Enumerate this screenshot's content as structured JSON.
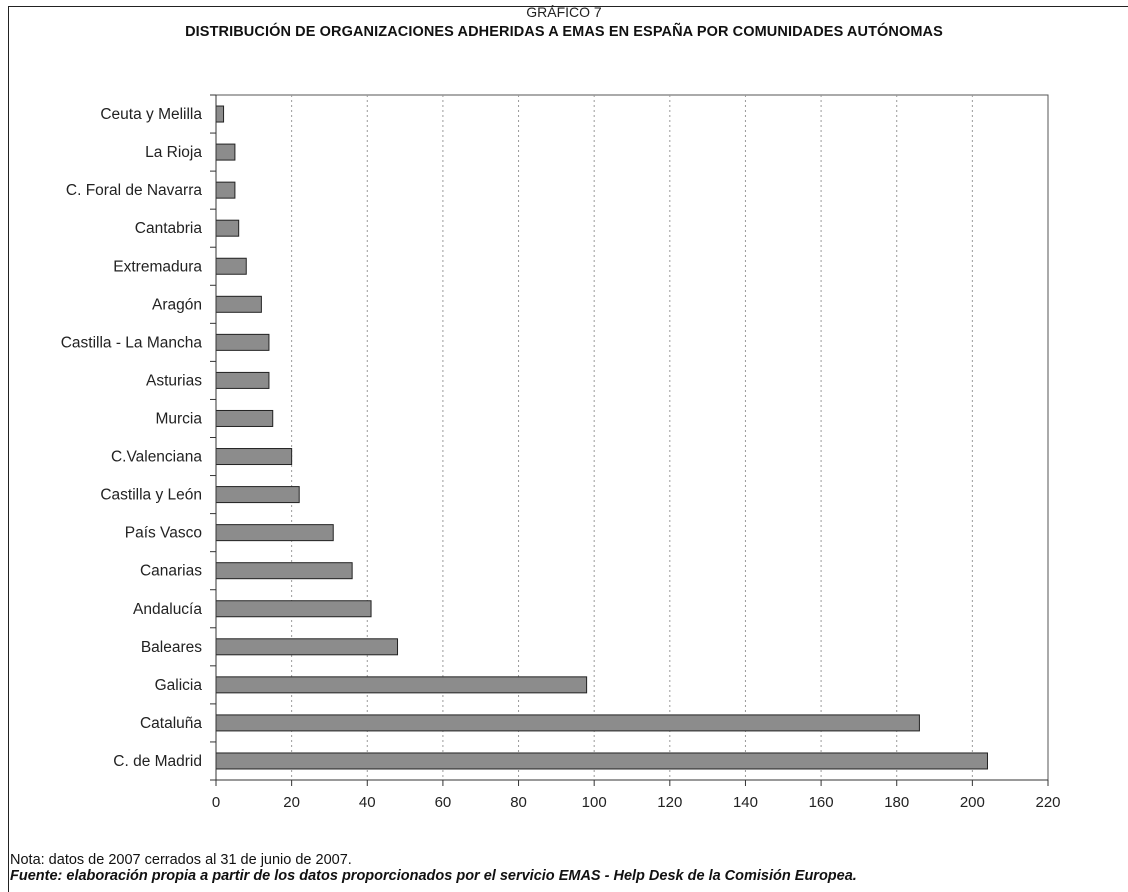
{
  "chart_data": {
    "type": "bar",
    "orientation": "horizontal",
    "label": "GRÁFICO 7",
    "title": "DISTRIBUCIÓN DE ORGANIZACIONES ADHERIDAS A EMAS  EN ESPAÑA POR COMUNIDADES AUTÓNOMAS",
    "categories": [
      "Ceuta y Melilla",
      "La Rioja",
      "C. Foral de Navarra",
      "Cantabria",
      "Extremadura",
      "Aragón",
      "Castilla - La Mancha",
      "Asturias",
      "Murcia",
      "C.Valenciana",
      "Castilla y León",
      "País Vasco",
      "Canarias",
      "Andalucía",
      "Baleares",
      "Galicia",
      "Cataluña",
      "C. de Madrid"
    ],
    "values": [
      2,
      5,
      5,
      6,
      8,
      12,
      14,
      14,
      15,
      20,
      22,
      31,
      36,
      41,
      48,
      98,
      186,
      204
    ],
    "xlim": [
      0,
      220
    ],
    "xticks": [
      0,
      20,
      40,
      60,
      80,
      100,
      120,
      140,
      160,
      180,
      200,
      220
    ],
    "bar_color": "#8c8c8c",
    "grid": "vertical dotted"
  },
  "notes": {
    "nota": "Nota: datos de 2007 cerrados al 31 de junio de 2007.",
    "fuente": "Fuente: elaboración propia a partir de los datos proporcionados por el servicio EMAS - Help Desk de la Comisión Europea."
  }
}
